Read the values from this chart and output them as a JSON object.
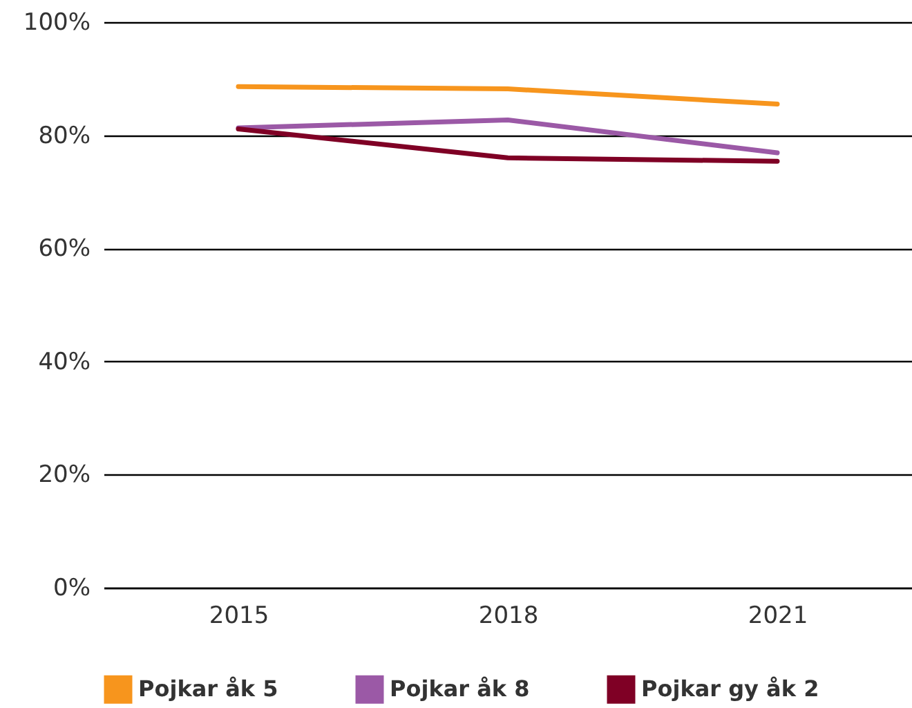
{
  "chart_data": {
    "type": "line",
    "categories": [
      "2015",
      "2018",
      "2021"
    ],
    "series": [
      {
        "name": "Pojkar åk 5",
        "color": "#f7951d",
        "values": [
          88.6,
          88.2,
          85.5
        ]
      },
      {
        "name": "Pojkar åk 8",
        "color": "#9b59a6",
        "values": [
          81.3,
          82.7,
          76.9
        ]
      },
      {
        "name": "Pojkar gy åk 2",
        "color": "#7f0025",
        "values": [
          81.1,
          76.0,
          75.4
        ]
      }
    ],
    "ylim": [
      0,
      100
    ],
    "yticks": [
      {
        "value": 0,
        "label": "0%"
      },
      {
        "value": 20,
        "label": "20%"
      },
      {
        "value": 40,
        "label": "40%"
      },
      {
        "value": 60,
        "label": "60%"
      },
      {
        "value": 80,
        "label": "80%"
      },
      {
        "value": 100,
        "label": "100%"
      }
    ],
    "grid": "y",
    "legend": "bottom",
    "marker": "none",
    "line_style": "solid"
  }
}
